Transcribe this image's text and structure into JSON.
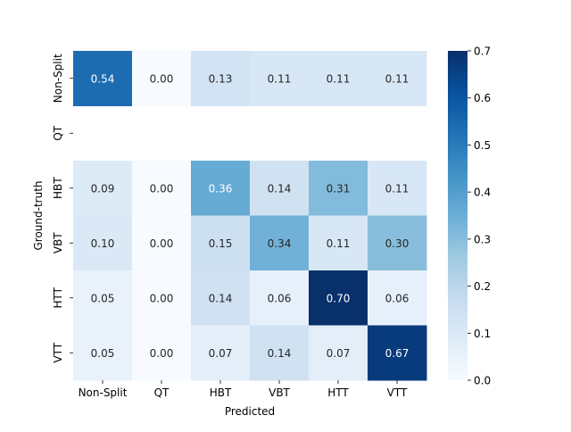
{
  "chart_data": {
    "type": "heatmap",
    "xlabel": "Predicted",
    "ylabel": "Ground-truth",
    "x_categories": [
      "Non-Split",
      "QT",
      "HBT",
      "VBT",
      "HTT",
      "VTT"
    ],
    "y_categories": [
      "Non-Split",
      "QT",
      "HBT",
      "VBT",
      "HTT",
      "VTT"
    ],
    "values": [
      [
        0.54,
        0.0,
        0.13,
        0.11,
        0.11,
        0.11
      ],
      [
        null,
        null,
        null,
        null,
        null,
        null
      ],
      [
        0.09,
        0.0,
        0.36,
        0.14,
        0.31,
        0.11
      ],
      [
        0.1,
        0.0,
        0.15,
        0.34,
        0.11,
        0.3
      ],
      [
        0.05,
        0.0,
        0.14,
        0.06,
        0.7,
        0.06
      ],
      [
        0.05,
        0.0,
        0.07,
        0.14,
        0.07,
        0.67
      ]
    ],
    "value_labels": [
      [
        "0.54",
        "0.00",
        "0.13",
        "0.11",
        "0.11",
        "0.11"
      ],
      [
        "",
        "",
        "",
        "",
        "",
        ""
      ],
      [
        "0.09",
        "0.00",
        "0.36",
        "0.14",
        "0.31",
        "0.11"
      ],
      [
        "0.10",
        "0.00",
        "0.15",
        "0.34",
        "0.11",
        "0.30"
      ],
      [
        "0.05",
        "0.00",
        "0.14",
        "0.06",
        "0.70",
        "0.06"
      ],
      [
        "0.05",
        "0.00",
        "0.07",
        "0.14",
        "0.07",
        "0.67"
      ]
    ],
    "colorbar": {
      "range": [
        0.0,
        0.7
      ],
      "ticks": [
        0.0,
        0.1,
        0.2,
        0.3,
        0.4,
        0.5,
        0.6,
        0.7
      ],
      "tick_labels": [
        "0.0",
        "0.1",
        "0.2",
        "0.3",
        "0.4",
        "0.5",
        "0.6",
        "0.7"
      ],
      "colormap": "Blues",
      "colormap_stops": [
        "#f7fbff",
        "#deebf7",
        "#c6dbef",
        "#9ecae1",
        "#6baed6",
        "#4292c6",
        "#2171b5",
        "#08519c",
        "#08306b"
      ]
    },
    "text_colors": {
      "dark": "#262626",
      "light": "#ffffff"
    },
    "grid": false
  }
}
